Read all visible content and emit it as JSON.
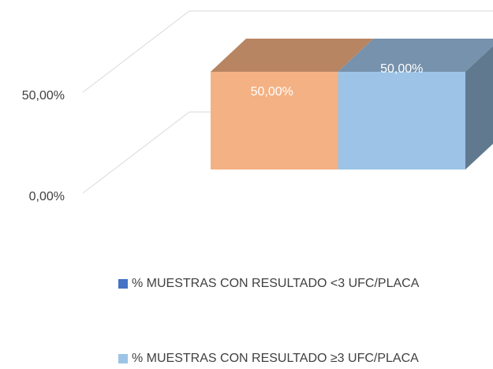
{
  "chart_data": {
    "type": "bar3d",
    "categories": [
      ""
    ],
    "series": [
      {
        "name": "% MUESTRAS CON RESULTADO <3 UFC/PLACA",
        "color": "#f4b183",
        "legend_color": "#4472c4",
        "values": [
          50
        ],
        "value_labels": [
          "50,00%"
        ]
      },
      {
        "name": "% MUESTRAS CON RESULTADO ≥3 UFC/PLACA",
        "color": "#9dc3e6",
        "legend_color": "#9dc3e6",
        "values": [
          50
        ],
        "value_labels": [
          "50,00%"
        ]
      }
    ],
    "ylim": [
      0,
      100
    ],
    "yticks": [
      {
        "value": 0,
        "label": "0,00%"
      },
      {
        "value": 50,
        "label": "50,00%"
      }
    ],
    "grid": true
  }
}
